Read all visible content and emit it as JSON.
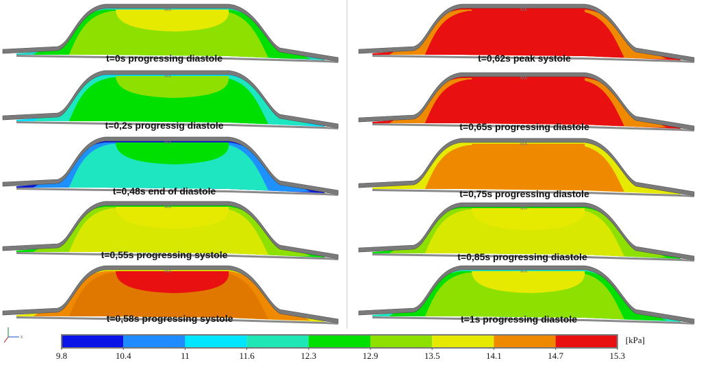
{
  "panels": [
    {
      "caption": "t=0s   progressing diastole",
      "colors": [
        "#22d4c4",
        "#00e000",
        "#8ee000",
        "#e6ea00"
      ]
    },
    {
      "caption": "t=0,2s progressig diastole",
      "colors": [
        "#00e0ff",
        "#1ee6c0",
        "#00e000",
        "#8ee000"
      ]
    },
    {
      "caption": "t=0,48s end of diastole",
      "colors": [
        "#0b1ad0",
        "#1e90ff",
        "#1ee6c0",
        "#00e000"
      ]
    },
    {
      "caption": "t=0,55s progressing systole",
      "colors": [
        "#00e000",
        "#8ee000",
        "#d8e800",
        "#e6ea00"
      ]
    },
    {
      "caption": "t=0,58s progressing systole",
      "colors": [
        "#e6ea00",
        "#ef8a00",
        "#e07800",
        "#e81010"
      ]
    },
    {
      "caption": "t=0,62s peak systole",
      "colors": [
        "#e81010",
        "#ef8a00",
        "#e81010",
        "#e81010"
      ]
    },
    {
      "caption": "t=0,65s progressing diastole",
      "colors": [
        "#e81010",
        "#ef8a00",
        "#e81010",
        "#e81010"
      ]
    },
    {
      "caption": "t=0,75s progressing diastole",
      "colors": [
        "#e6ea00",
        "#e6ea00",
        "#ef8a00",
        "#ef8a00"
      ]
    },
    {
      "caption": "t=0,85s progressing diastole",
      "colors": [
        "#00e000",
        "#8ee000",
        "#d8e800",
        "#e6ea00"
      ]
    },
    {
      "caption": "t=1s progressing diastole",
      "colors": [
        "#1ee6c0",
        "#00e000",
        "#8ee000",
        "#e6ea00"
      ]
    }
  ],
  "colorbar": {
    "unit": "[kPa]",
    "ticks": [
      "9.8",
      "10.4",
      "11",
      "11.6",
      "12.3",
      "12.9",
      "13.5",
      "14.1",
      "14.7",
      "15.3"
    ],
    "colors": [
      "#0a14e6",
      "#1e8cff",
      "#00e6ff",
      "#1ee6b4",
      "#00e000",
      "#8ee000",
      "#e6ea00",
      "#ef8a00",
      "#e81010"
    ]
  },
  "axis": {
    "x_label": "x",
    "y_label": "y"
  }
}
